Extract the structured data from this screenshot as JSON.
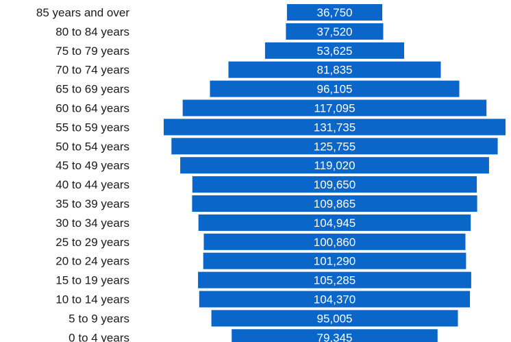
{
  "chart_data": {
    "type": "bar",
    "orientation": "horizontal-centered",
    "categories": [
      "85 years and over",
      "80 to 84 years",
      "75 to 79 years",
      "70 to 74 years",
      "65 to 69 years",
      "60 to 64 years",
      "55 to 59 years",
      "50 to 54 years",
      "45 to 49 years",
      "40 to 44 years",
      "35 to 39 years",
      "30 to 34 years",
      "25 to 29 years",
      "20 to 24 years",
      "15 to 19 years",
      "10 to 14 years",
      "5 to 9 years",
      "0 to 4 years"
    ],
    "values": [
      36750,
      37520,
      53625,
      81835,
      96105,
      117095,
      131735,
      125755,
      119020,
      109650,
      109865,
      104945,
      100860,
      101290,
      105285,
      104370,
      95005,
      79345
    ],
    "value_labels": [
      "36,750",
      "37,520",
      "53,625",
      "81,835",
      "96,105",
      "117,095",
      "131,735",
      "125,755",
      "119,020",
      "109,650",
      "109,865",
      "104,945",
      "100,860",
      "101,290",
      "105,285",
      "104,370",
      "95,005",
      "79,345"
    ],
    "bar_color": "#0a66c8",
    "title": "",
    "xlabel": "",
    "ylabel": "",
    "grid": false,
    "legend": "none"
  }
}
